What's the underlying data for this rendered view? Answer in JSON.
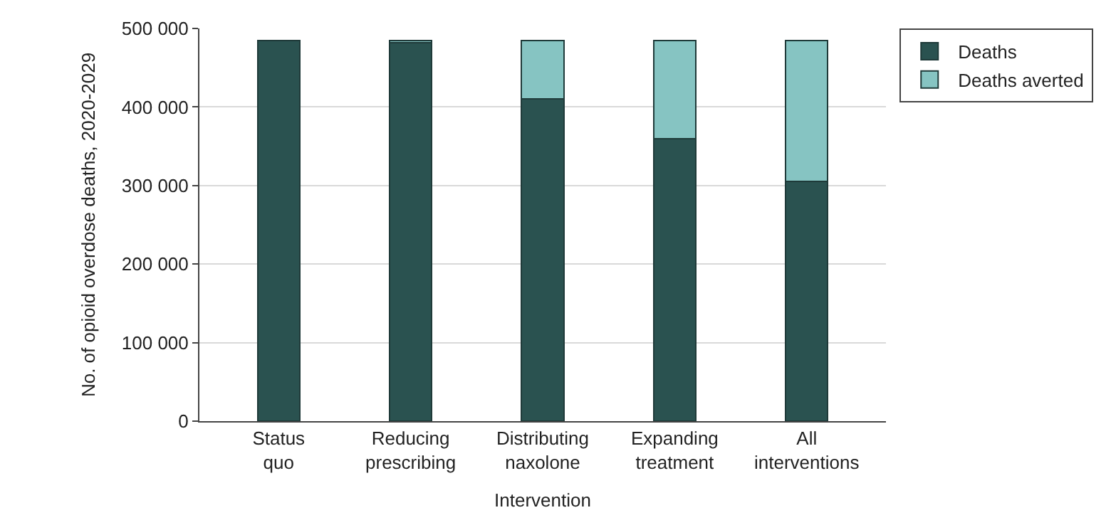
{
  "chart_data": {
    "type": "bar",
    "stacked": true,
    "categories": [
      "Status quo",
      "Reducing prescribing",
      "Distributing naxolone",
      "Expanding treatment",
      "All interventions"
    ],
    "series": [
      {
        "name": "Deaths",
        "color": "#2a5250",
        "values": [
          485000,
          482000,
          410000,
          360000,
          305000
        ]
      },
      {
        "name": "Deaths averted",
        "color": "#86c4c2",
        "values": [
          null,
          3000,
          75000,
          125000,
          180000
        ]
      }
    ],
    "xlabel": "Intervention",
    "ylabel": "No. of opioid overdose deaths, 2020-2029",
    "ylim": [
      0,
      500000
    ],
    "yticks": [
      0,
      {
        "value": 100000,
        "label": "100 000"
      },
      {
        "value": 200000,
        "label": "200 000"
      },
      {
        "value": 300000,
        "label": "300 000"
      },
      {
        "value": 400000,
        "label": "400 000"
      },
      {
        "value": 500000,
        "label": "500 000"
      }
    ],
    "grid": "y",
    "legend": "top right"
  }
}
